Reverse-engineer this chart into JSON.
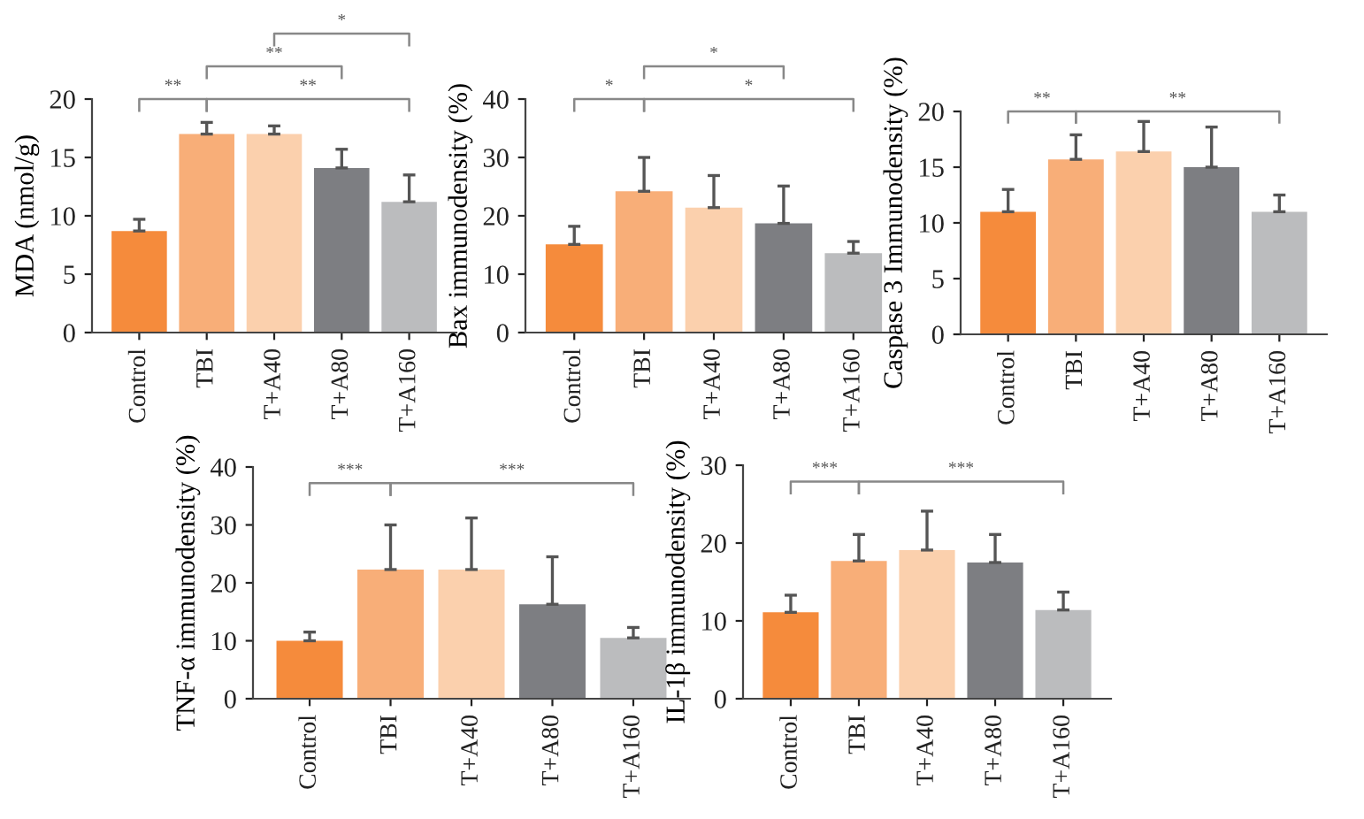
{
  "chart_data": [
    {
      "type": "bar",
      "ylabel": "MDA (nmol/g)",
      "categories": [
        "Control",
        "TBI",
        "T+A40",
        "T+A80",
        "T+A160"
      ],
      "values": [
        8.7,
        17,
        17,
        14.1,
        11.2
      ],
      "errors": [
        [
          8.7,
          9.7
        ],
        [
          17,
          18
        ],
        [
          17,
          17.7
        ],
        [
          14.1,
          15.7
        ],
        [
          11.2,
          13.5
        ]
      ],
      "colors": [
        "#f58b3c",
        "#f8ae78",
        "#fbd0ad",
        "#7d7e82",
        "#bbbcbe"
      ],
      "ylim": [
        0,
        20
      ],
      "yticks": [
        0,
        5,
        10,
        15,
        20
      ],
      "grid": false,
      "annotations": [
        "**",
        "**",
        "**",
        "*"
      ]
    },
    {
      "type": "bar",
      "ylabel": "Bax immunodensity (%)",
      "categories": [
        "Control",
        "TBI",
        "T+A40",
        "T+A80",
        "T+A160"
      ],
      "values": [
        15.1,
        24.2,
        21.4,
        18.7,
        13.6
      ],
      "errors": [
        [
          15.1,
          18.2
        ],
        [
          24.2,
          30
        ],
        [
          21.4,
          26.9
        ],
        [
          18.7,
          25.1
        ],
        [
          13.6,
          15.6
        ]
      ],
      "colors": [
        "#f58b3c",
        "#f8ae78",
        "#fbd0ad",
        "#7d7e82",
        "#bbbcbe"
      ],
      "ylim": [
        0,
        40
      ],
      "yticks": [
        0,
        10,
        20,
        30,
        40
      ],
      "grid": false,
      "annotations": [
        "*",
        "*",
        "*"
      ]
    },
    {
      "type": "bar",
      "ylabel": "Caspase 3 Immunodensity (%)",
      "categories": [
        "Control",
        "TBI",
        "T+A40",
        "T+A80",
        "T+A160"
      ],
      "values": [
        11,
        15.7,
        16.4,
        15,
        11
      ],
      "errors": [
        [
          11,
          13
        ],
        [
          15.7,
          17.9
        ],
        [
          16.4,
          19.1
        ],
        [
          15,
          18.6
        ],
        [
          11,
          12.5
        ]
      ],
      "colors": [
        "#f58b3c",
        "#f8ae78",
        "#fbd0ad",
        "#7d7e82",
        "#bbbcbe"
      ],
      "ylim": [
        0,
        20
      ],
      "yticks": [
        0,
        5,
        10,
        15,
        20
      ],
      "grid": false,
      "annotations": [
        "**",
        "**"
      ]
    },
    {
      "type": "bar",
      "ylabel": "TNF-α immunodensity (%)",
      "categories": [
        "Control",
        "TBI",
        "T+A40",
        "T+A80",
        "T+A160"
      ],
      "values": [
        10,
        22.3,
        22.3,
        16.3,
        10.5
      ],
      "errors": [
        [
          10,
          11.5
        ],
        [
          22.3,
          30
        ],
        [
          22.3,
          31.2
        ],
        [
          16.3,
          24.5
        ],
        [
          10.5,
          12.3
        ]
      ],
      "colors": [
        "#f58b3c",
        "#f8ae78",
        "#fbd0ad",
        "#7d7e82",
        "#bbbcbe"
      ],
      "ylim": [
        0,
        40
      ],
      "yticks": [
        0,
        10,
        20,
        30,
        40
      ],
      "grid": false,
      "annotations": [
        "***",
        "***"
      ]
    },
    {
      "type": "bar",
      "ylabel": "IL-1β immunodensity (%)",
      "categories": [
        "Control",
        "TBI",
        "T+A40",
        "T+A80",
        "T+A160"
      ],
      "values": [
        11.1,
        17.7,
        19.1,
        17.5,
        11.4
      ],
      "errors": [
        [
          11.1,
          13.3
        ],
        [
          17.7,
          21.1
        ],
        [
          19.1,
          24.1
        ],
        [
          17.5,
          21.1
        ],
        [
          11.4,
          13.7
        ]
      ],
      "colors": [
        "#f58b3c",
        "#f8ae78",
        "#fbd0ad",
        "#7d7e82",
        "#bbbcbe"
      ],
      "ylim": [
        0,
        30
      ],
      "yticks": [
        0,
        10,
        20,
        30
      ],
      "grid": false,
      "annotations": [
        "***",
        "***"
      ]
    }
  ]
}
